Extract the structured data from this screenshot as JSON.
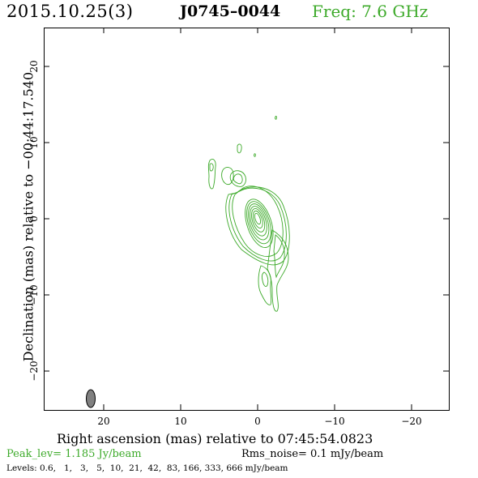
{
  "header": {
    "date": "2015.10.25(3)",
    "source": "J0745–0044",
    "freq": "Freq: 7.6 GHz"
  },
  "axes": {
    "ylabel": "Declination (mas) relative to −00:44:17.540",
    "xlabel": "Right ascension (mas) relative to 07:45:54.0823",
    "x_ticks": [
      "20",
      "10",
      "0",
      "−10",
      "−20"
    ],
    "y_ticks": [
      "20",
      "10",
      "0",
      "−10",
      "−20"
    ],
    "x_range": [
      25,
      -25
    ],
    "y_range": [
      -25,
      25
    ]
  },
  "footer": {
    "peak": "Peak_lev=  1.185 Jy/beam",
    "rms": "Rms_noise=  0.1 mJy/beam",
    "levels": "Levels: 0.6,   1,   3,   5,  10,  21,  42,  83, 166, 333, 666 mJy/beam"
  },
  "colors": {
    "contour": "#3daa2a",
    "beam": "#808080"
  }
}
